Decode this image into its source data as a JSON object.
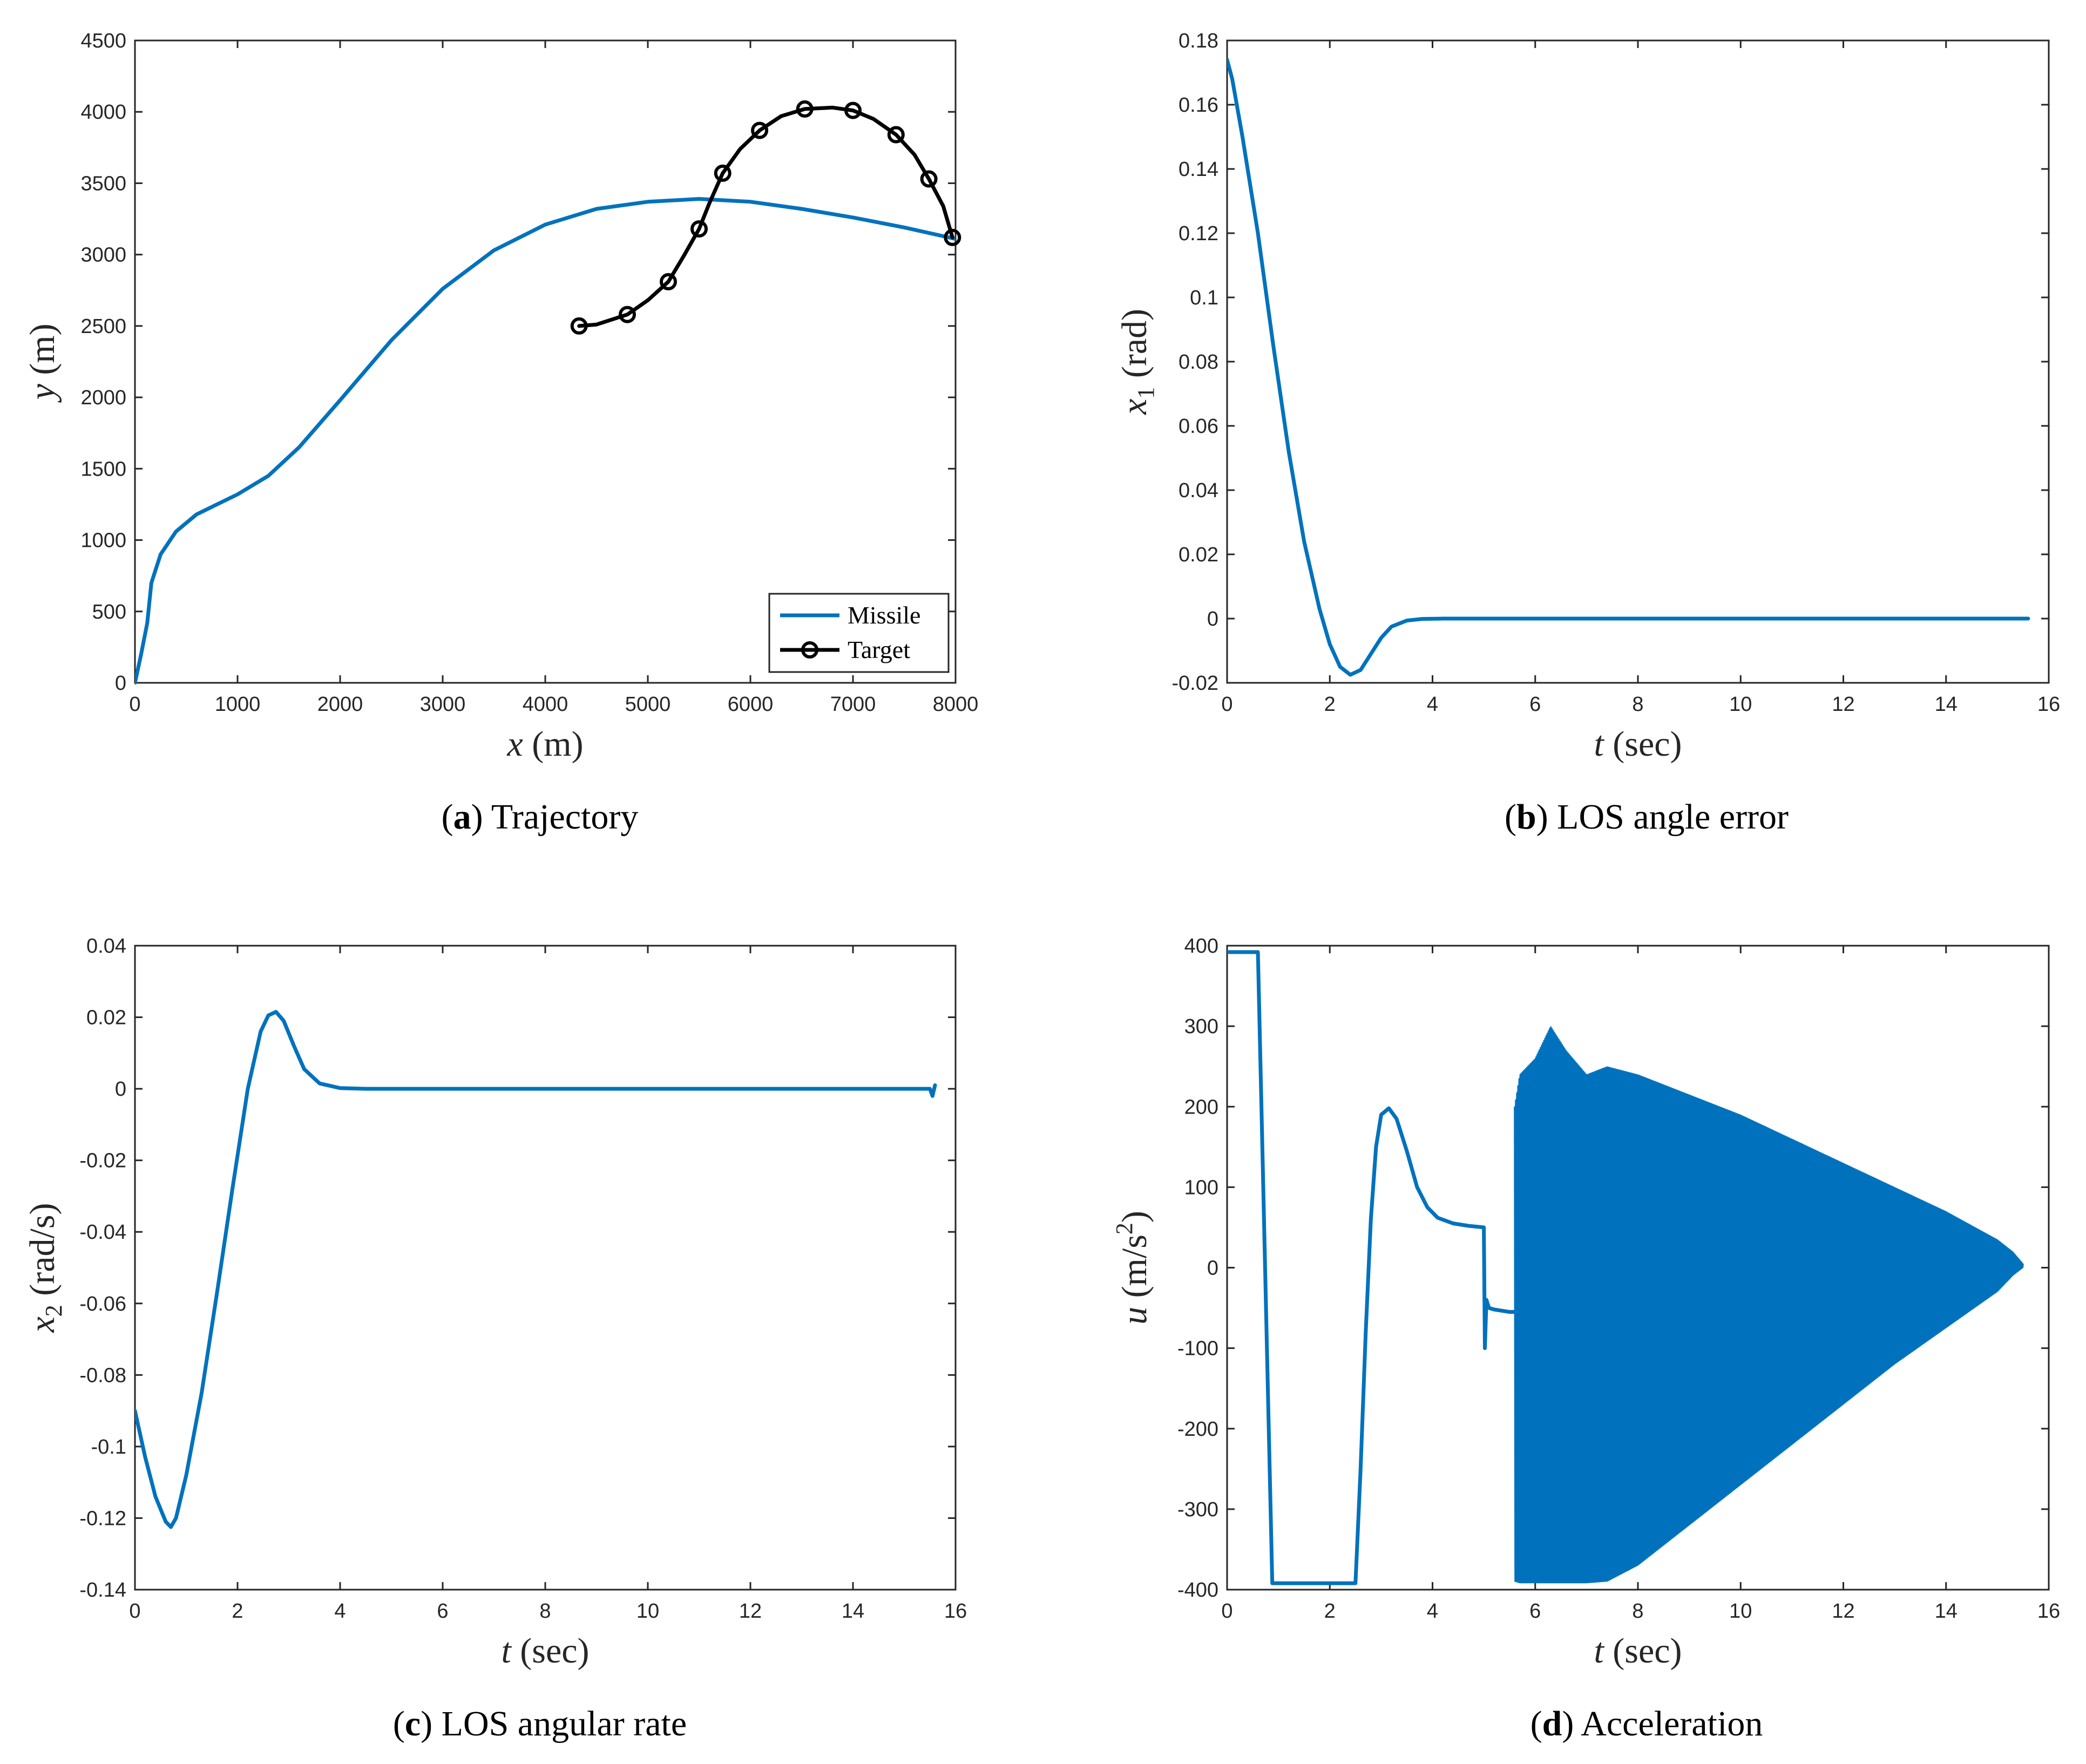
{
  "colors": {
    "missile": "#0072BD",
    "target": "#000000",
    "axis": "#262626"
  },
  "chart_data": [
    {
      "id": "a",
      "type": "line",
      "caption_letter": "a",
      "caption_text": "Trajectory",
      "xlabel_var": "x",
      "xlabel_unit": "(m)",
      "ylabel_var": "y",
      "ylabel_unit": "(m)",
      "xlim": [
        0,
        8000
      ],
      "ylim": [
        0,
        4500
      ],
      "xticks": [
        0,
        1000,
        2000,
        3000,
        4000,
        5000,
        6000,
        7000,
        8000
      ],
      "yticks": [
        0,
        500,
        1000,
        1500,
        2000,
        2500,
        3000,
        3500,
        4000,
        4500
      ],
      "legend_position": "bottom-right",
      "series": [
        {
          "name": "Missile",
          "color": "#0072BD",
          "marker": "none",
          "x": [
            0,
            60,
            120,
            160,
            250,
            400,
            600,
            800,
            1000,
            1300,
            1600,
            2000,
            2500,
            3000,
            3500,
            4000,
            4500,
            5000,
            5500,
            6000,
            6500,
            7000,
            7500,
            8000
          ],
          "y": [
            0,
            200,
            420,
            700,
            900,
            1060,
            1180,
            1250,
            1320,
            1450,
            1650,
            1980,
            2400,
            2760,
            3030,
            3210,
            3320,
            3370,
            3390,
            3370,
            3320,
            3260,
            3190,
            3110
          ]
        },
        {
          "name": "Target",
          "color": "#000000",
          "marker": "circle",
          "x": [
            4330,
            4500,
            4800,
            5000,
            5200,
            5350,
            5500,
            5600,
            5730,
            5900,
            6090,
            6300,
            6530,
            6800,
            7000,
            7200,
            7420,
            7600,
            7740,
            7880,
            7970
          ],
          "y": [
            2500,
            2510,
            2580,
            2680,
            2810,
            2990,
            3180,
            3360,
            3570,
            3740,
            3870,
            3970,
            4020,
            4030,
            4010,
            3950,
            3840,
            3700,
            3530,
            3340,
            3120
          ],
          "marker_x": [
            4330,
            4800,
            5200,
            5500,
            5730,
            6090,
            6530,
            7000,
            7420,
            7740,
            7970
          ],
          "marker_y": [
            2500,
            2580,
            2810,
            3180,
            3570,
            3870,
            4020,
            4010,
            3840,
            3530,
            3120
          ]
        }
      ]
    },
    {
      "id": "b",
      "type": "line",
      "caption_letter": "b",
      "caption_text": "LOS angle error",
      "xlabel_var": "t",
      "xlabel_unit": "(sec)",
      "ylabel_var": "x",
      "ylabel_sub": "1",
      "ylabel_unit": "(rad)",
      "xlim": [
        0,
        16
      ],
      "ylim": [
        -0.02,
        0.18
      ],
      "xticks": [
        0,
        2,
        4,
        6,
        8,
        10,
        12,
        14,
        16
      ],
      "yticks": [
        -0.02,
        0,
        0.02,
        0.04,
        0.06,
        0.08,
        0.1,
        0.12,
        0.14,
        0.16,
        0.18
      ],
      "xtick_labels": [
        "0",
        "2",
        "4",
        "6",
        "8",
        "10",
        "12",
        "14",
        "16"
      ],
      "ytick_labels": [
        "-0.02",
        "0",
        "0.02",
        "0.04",
        "0.06",
        "0.08",
        "0.1",
        "0.12",
        "0.14",
        "0.16",
        "0.18"
      ],
      "series": [
        {
          "name": "x1",
          "color": "#0072BD",
          "x": [
            0,
            0.1,
            0.3,
            0.6,
            0.9,
            1.2,
            1.5,
            1.8,
            2.0,
            2.2,
            2.4,
            2.6,
            2.8,
            3.0,
            3.2,
            3.5,
            3.8,
            4.2,
            5,
            8,
            12,
            15.6
          ],
          "y": [
            0.174,
            0.168,
            0.15,
            0.12,
            0.085,
            0.052,
            0.024,
            0.003,
            -0.008,
            -0.015,
            -0.0175,
            -0.016,
            -0.011,
            -0.006,
            -0.0025,
            -0.0006,
            -0.0001,
            0,
            0,
            0,
            0,
            0
          ]
        }
      ]
    },
    {
      "id": "c",
      "type": "line",
      "caption_letter": "c",
      "caption_text": "LOS angular rate",
      "xlabel_var": "t",
      "xlabel_unit": "(sec)",
      "ylabel_var": "x",
      "ylabel_sub": "2",
      "ylabel_unit": "(rad/s)",
      "xlim": [
        0,
        16
      ],
      "ylim": [
        -0.14,
        0.04
      ],
      "xticks": [
        0,
        2,
        4,
        6,
        8,
        10,
        12,
        14,
        16
      ],
      "yticks": [
        -0.14,
        -0.12,
        -0.1,
        -0.08,
        -0.06,
        -0.04,
        -0.02,
        0,
        0.02,
        0.04
      ],
      "xtick_labels": [
        "0",
        "2",
        "4",
        "6",
        "8",
        "10",
        "12",
        "14",
        "16"
      ],
      "ytick_labels": [
        "-0.14",
        "-0.12",
        "-0.1",
        "-0.08",
        "-0.06",
        "-0.04",
        "-0.02",
        "0",
        "0.02",
        "0.04"
      ],
      "series": [
        {
          "name": "x2",
          "color": "#0072BD",
          "x": [
            0,
            0.2,
            0.4,
            0.6,
            0.7,
            0.8,
            1.0,
            1.3,
            1.6,
            1.9,
            2.2,
            2.45,
            2.6,
            2.75,
            2.9,
            3.1,
            3.3,
            3.6,
            4.0,
            4.5,
            5,
            8,
            12,
            15.5,
            15.55,
            15.6
          ],
          "y": [
            -0.09,
            -0.103,
            -0.114,
            -0.121,
            -0.1225,
            -0.12,
            -0.108,
            -0.085,
            -0.057,
            -0.028,
            0.0,
            0.016,
            0.0205,
            0.0215,
            0.019,
            0.012,
            0.0055,
            0.0015,
            0.0002,
            0,
            0,
            0,
            0,
            0,
            -0.002,
            0.001
          ]
        }
      ]
    },
    {
      "id": "d",
      "type": "line",
      "caption_letter": "d",
      "caption_text": "Acceleration",
      "xlabel_var": "t",
      "xlabel_unit": "(sec)",
      "ylabel_var": "u",
      "ylabel_unit": "(m/s",
      "ylabel_sup": "2",
      "ylabel_close": ")",
      "xlim": [
        0,
        16
      ],
      "ylim": [
        -400,
        400
      ],
      "xticks": [
        0,
        2,
        4,
        6,
        8,
        10,
        12,
        14,
        16
      ],
      "yticks": [
        -400,
        -300,
        -200,
        -100,
        0,
        100,
        200,
        300,
        400
      ],
      "xtick_labels": [
        "0",
        "2",
        "4",
        "6",
        "8",
        "10",
        "12",
        "14",
        "16"
      ],
      "ytick_labels": [
        "-400",
        "-300",
        "-200",
        "-100",
        "0",
        "100",
        "200",
        "300",
        "400"
      ],
      "series": [
        {
          "name": "u",
          "color": "#0072BD",
          "x": [
            0,
            0.6,
            0.88,
            2.5,
            2.6,
            2.7,
            2.8,
            2.9,
            3.0,
            3.15,
            3.3,
            3.5,
            3.7,
            3.9,
            4.1,
            4.4,
            4.7,
            5.0,
            5.02,
            5.05,
            5.1,
            5.2,
            5.5,
            5.6
          ],
          "y": [
            392,
            392,
            -392,
            -392,
            -250,
            -80,
            60,
            150,
            190,
            198,
            185,
            145,
            100,
            75,
            62,
            55,
            52,
            50,
            -100,
            -40,
            -50,
            -52,
            -55,
            -55
          ]
        },
        {
          "name": "u-envelope",
          "color": "#0072BD",
          "upper_x": [
            5.6,
            5.7,
            6.0,
            6.3,
            6.6,
            7.0,
            7.4,
            8.0,
            9.0,
            10.0,
            11.0,
            12.0,
            13.0,
            14.0,
            15.0,
            15.3,
            15.5
          ],
          "upper_y": [
            200,
            240,
            260,
            300,
            270,
            240,
            250,
            240,
            215,
            190,
            160,
            130,
            100,
            70,
            35,
            20,
            5
          ],
          "lower_x": [
            5.6,
            5.7,
            6.0,
            6.3,
            6.6,
            7.0,
            7.4,
            8.0,
            9.0,
            10.0,
            11.0,
            12.0,
            13.0,
            14.0,
            15.0,
            15.3,
            15.5
          ],
          "lower_y": [
            -390,
            -392,
            -392,
            -392,
            -392,
            -392,
            -390,
            -370,
            -320,
            -270,
            -220,
            -170,
            -120,
            -75,
            -30,
            -10,
            0
          ]
        }
      ]
    }
  ]
}
